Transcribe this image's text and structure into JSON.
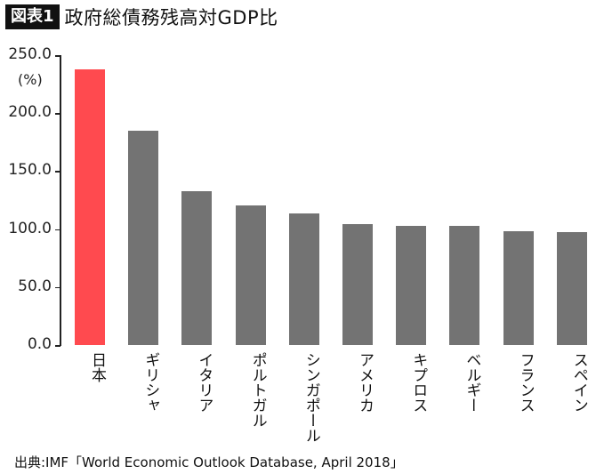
{
  "header": {
    "badge": "図表1",
    "title": "政府総債務残高対GDP比"
  },
  "source": "出典:IMF「World Economic Outlook Database, April 2018」",
  "colors": {
    "highlight": "#ff4a4f",
    "default": "#737373",
    "axis": "#222222"
  },
  "chart_data": {
    "type": "bar",
    "title": "政府総債務残高対GDP比",
    "xlabel": "",
    "ylabel": "(%)",
    "ylim": [
      0,
      250
    ],
    "yticks": [
      "0.0",
      "50.0",
      "100.0",
      "150.0",
      "200.0",
      "250.0"
    ],
    "grid": false,
    "legend": null,
    "categories": [
      "日本",
      "ギリシャ",
      "イタリア",
      "ポルトガル",
      "シンガポール",
      "アメリカ",
      "キプロス",
      "ベルギー",
      "フランス",
      "スペイン"
    ],
    "values": [
      237.6,
      184.8,
      132.7,
      120.4,
      113.5,
      104.3,
      102.8,
      102.4,
      98.5,
      97.4
    ],
    "highlight_index": 0,
    "source": "出典:IMF「World Economic Outlook Database, April 2018」"
  }
}
